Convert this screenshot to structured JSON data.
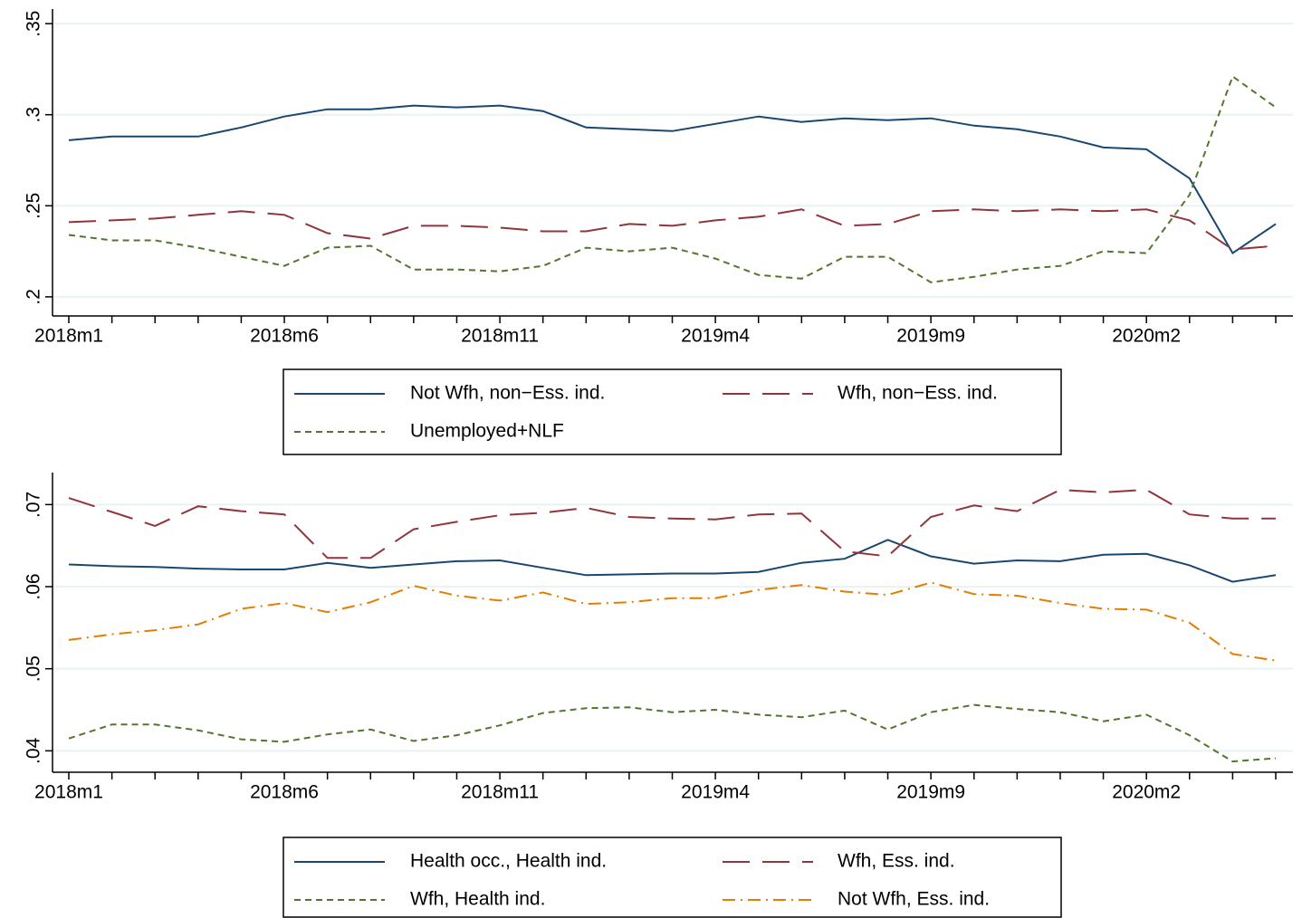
{
  "chart_data": [
    {
      "type": "line",
      "categories": [
        "2018m1",
        null,
        null,
        null,
        null,
        "2018m6",
        null,
        null,
        null,
        null,
        "2018m11",
        null,
        null,
        null,
        null,
        "2019m4",
        null,
        null,
        null,
        null,
        "2019m9",
        null,
        null,
        null,
        null,
        "2020m2",
        null,
        null,
        null
      ],
      "ylim": [
        0.19,
        0.358
      ],
      "yticks": [
        {
          "value": 0.2,
          "label": ".2"
        },
        {
          "value": 0.25,
          "label": ".25"
        },
        {
          "value": 0.3,
          "label": ".3"
        },
        {
          "value": 0.35,
          "label": ".35"
        }
      ],
      "grid": true,
      "legend": "bottom",
      "series": [
        {
          "name": "Not Wfh, non−Ess. ind.",
          "color": "#1a476f",
          "style": "solid",
          "values": [
            0.286,
            0.288,
            0.288,
            0.288,
            0.293,
            0.299,
            0.303,
            0.303,
            0.305,
            0.304,
            0.305,
            0.302,
            0.293,
            0.292,
            0.291,
            0.295,
            0.299,
            0.296,
            0.298,
            0.297,
            0.298,
            0.294,
            0.292,
            0.288,
            0.282,
            0.281,
            0.265,
            0.224,
            0.24
          ]
        },
        {
          "name": "Wfh, non−Ess. ind.",
          "color": "#90353b",
          "style": "longdash",
          "values": [
            0.241,
            0.242,
            0.243,
            0.245,
            0.247,
            0.245,
            0.235,
            0.232,
            0.239,
            0.239,
            0.238,
            0.236,
            0.236,
            0.24,
            0.239,
            0.242,
            0.244,
            0.248,
            0.239,
            0.24,
            0.247,
            0.248,
            0.247,
            0.248,
            0.247,
            0.248,
            0.242,
            0.226,
            0.228
          ]
        },
        {
          "name": "Unemployed+NLF",
          "color": "#55752f",
          "style": "shortdash",
          "values": [
            0.234,
            0.231,
            0.231,
            0.227,
            0.222,
            0.217,
            0.227,
            0.228,
            0.215,
            0.215,
            0.214,
            0.217,
            0.227,
            0.225,
            0.227,
            0.221,
            0.212,
            0.21,
            0.222,
            0.222,
            0.208,
            0.211,
            0.215,
            0.217,
            0.225,
            0.224,
            0.256,
            0.321,
            0.304
          ]
        }
      ]
    },
    {
      "type": "line",
      "categories": [
        "2018m1",
        null,
        null,
        null,
        null,
        "2018m6",
        null,
        null,
        null,
        null,
        "2018m11",
        null,
        null,
        null,
        null,
        "2019m4",
        null,
        null,
        null,
        null,
        "2019m9",
        null,
        null,
        null,
        null,
        "2020m2",
        null,
        null,
        null
      ],
      "ylim": [
        0.0375,
        0.0739
      ],
      "yticks": [
        {
          "value": 0.04,
          "label": ".04"
        },
        {
          "value": 0.05,
          "label": ".05"
        },
        {
          "value": 0.06,
          "label": ".06"
        },
        {
          "value": 0.07,
          "label": ".07"
        }
      ],
      "grid": true,
      "legend": "bottom",
      "series": [
        {
          "name": "Health occ., Health ind.",
          "color": "#1a476f",
          "style": "solid",
          "values": [
            0.0627,
            0.0625,
            0.0624,
            0.0622,
            0.0621,
            0.0621,
            0.0629,
            0.0623,
            0.0627,
            0.0631,
            0.0632,
            0.0623,
            0.0614,
            0.0615,
            0.0616,
            0.0616,
            0.0618,
            0.0629,
            0.0634,
            0.0657,
            0.0637,
            0.0628,
            0.0632,
            0.0631,
            0.0639,
            0.064,
            0.0626,
            0.0606,
            0.0614
          ]
        },
        {
          "name": "Wfh, Ess. ind.",
          "color": "#90353b",
          "style": "longdash",
          "values": [
            0.0708,
            0.0691,
            0.0674,
            0.0698,
            0.0692,
            0.0688,
            0.0635,
            0.0635,
            0.067,
            0.0679,
            0.0687,
            0.069,
            0.0696,
            0.0685,
            0.0683,
            0.0682,
            0.0688,
            0.0689,
            0.0643,
            0.0637,
            0.0685,
            0.0699,
            0.0692,
            0.0718,
            0.0715,
            0.0718,
            0.0688,
            0.0683,
            0.0683
          ]
        },
        {
          "name": "Wfh, Health ind.",
          "color": "#55752f",
          "style": "shortdash",
          "values": [
            0.0415,
            0.0432,
            0.0432,
            0.0425,
            0.0414,
            0.0411,
            0.042,
            0.0426,
            0.0412,
            0.0419,
            0.0431,
            0.0446,
            0.0452,
            0.0453,
            0.0447,
            0.045,
            0.0444,
            0.0441,
            0.0449,
            0.0426,
            0.0447,
            0.0456,
            0.0451,
            0.0447,
            0.0436,
            0.0444,
            0.0419,
            0.0387,
            0.0391
          ]
        },
        {
          "name": "Not Wfh, Ess. ind.",
          "color": "#e37e00",
          "style": "dashdot",
          "values": [
            0.0535,
            0.0542,
            0.0547,
            0.0554,
            0.0573,
            0.058,
            0.0569,
            0.0581,
            0.0601,
            0.0589,
            0.0583,
            0.0593,
            0.0579,
            0.0581,
            0.0586,
            0.0586,
            0.0596,
            0.0602,
            0.0594,
            0.059,
            0.0605,
            0.0591,
            0.0589,
            0.058,
            0.0573,
            0.0572,
            0.0556,
            0.0518,
            0.051
          ]
        }
      ]
    }
  ]
}
